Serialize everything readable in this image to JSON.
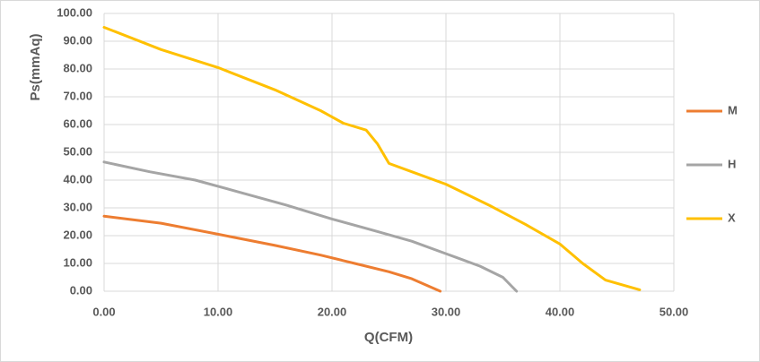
{
  "chart_data": {
    "type": "line",
    "x_label": "Q(CFM)",
    "y_label": "Ps(mmAq)",
    "xlim": [
      0,
      50
    ],
    "xticks": [
      {
        "value": 0,
        "label": "0.00"
      },
      {
        "value": 10,
        "label": "10.00"
      },
      {
        "value": 20,
        "label": "20.00"
      },
      {
        "value": 30,
        "label": "30.00"
      },
      {
        "value": 40,
        "label": "40.00"
      },
      {
        "value": 50,
        "label": "50.00"
      }
    ],
    "ylim": [
      0,
      100
    ],
    "yticks": [
      {
        "value": 0,
        "label": "0.00"
      },
      {
        "value": 10,
        "label": "10.00"
      },
      {
        "value": 20,
        "label": "20.00"
      },
      {
        "value": 30,
        "label": "30.00"
      },
      {
        "value": 40,
        "label": "40.00"
      },
      {
        "value": 50,
        "label": "50.00"
      },
      {
        "value": 60,
        "label": "60.00"
      },
      {
        "value": 70,
        "label": "70.00"
      },
      {
        "value": 80,
        "label": "80.00"
      },
      {
        "value": 90,
        "label": "90.00"
      },
      {
        "value": 100,
        "label": "100.00"
      }
    ],
    "grid": true,
    "legend": "right",
    "series": [
      {
        "name": "M",
        "color": "#ed7d31",
        "x": [
          0,
          5,
          10,
          15,
          19,
          22,
          25,
          27,
          29.5
        ],
        "values": [
          27,
          24.5,
          20.5,
          16.5,
          13,
          10,
          7,
          4.5,
          0
        ]
      },
      {
        "name": "H",
        "color": "#a5a5a5",
        "x": [
          0,
          4,
          8,
          12,
          16,
          20,
          24,
          27,
          30,
          33,
          35,
          36.2
        ],
        "values": [
          46.5,
          43,
          40,
          35.5,
          31,
          26,
          21.5,
          18,
          13.5,
          9,
          5,
          0
        ]
      },
      {
        "name": "X",
        "color": "#ffc000",
        "x": [
          0,
          5,
          10,
          15,
          19,
          21,
          23,
          24,
          25,
          27,
          30,
          34,
          37,
          40,
          42,
          44,
          47
        ],
        "values": [
          95,
          87,
          80.5,
          72.5,
          65,
          60.5,
          58,
          53,
          46,
          43,
          38.5,
          30.5,
          24,
          17,
          10,
          4,
          0.5
        ]
      }
    ]
  }
}
